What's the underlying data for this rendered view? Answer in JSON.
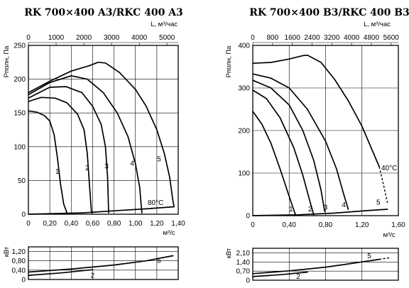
{
  "chart_data": [
    {
      "type": "line",
      "title": "RK 700×400 A3/RKC 400 A3",
      "xlabel": "м³/с",
      "ylabel": "Pполн, Па",
      "top_axis_label": "L, м³/час",
      "x_ticks": [
        "0",
        "0,20",
        "0,40",
        "0,60",
        "0,80",
        "1,00",
        "1,20",
        "1,40"
      ],
      "x_range": [
        0,
        1.4
      ],
      "top_ticks": [
        "0",
        "1000",
        "2000",
        "3000",
        "4000",
        "5000"
      ],
      "y_ticks": [
        "0",
        "50",
        "100",
        "150",
        "200",
        "250"
      ],
      "y_range": [
        0,
        250
      ],
      "grid": true,
      "temperature_label": "80°C",
      "series": [
        {
          "name": "1",
          "label_at": [
            0.27,
            60
          ],
          "points": [
            [
              0,
              153
            ],
            [
              0.08,
              151
            ],
            [
              0.15,
              146
            ],
            [
              0.2,
              138
            ],
            [
              0.24,
              118
            ],
            [
              0.27,
              85
            ],
            [
              0.3,
              45
            ],
            [
              0.33,
              15
            ],
            [
              0.36,
              2
            ]
          ]
        },
        {
          "name": "2",
          "label_at": [
            0.55,
            65
          ],
          "points": [
            [
              0,
              167
            ],
            [
              0.12,
              173
            ],
            [
              0.25,
              172
            ],
            [
              0.36,
              165
            ],
            [
              0.46,
              148
            ],
            [
              0.52,
              125
            ],
            [
              0.55,
              90
            ],
            [
              0.57,
              45
            ],
            [
              0.59,
              2
            ]
          ]
        },
        {
          "name": "3",
          "label_at": [
            0.73,
            68
          ],
          "points": [
            [
              0,
              172
            ],
            [
              0.2,
              188
            ],
            [
              0.35,
              189
            ],
            [
              0.5,
              180
            ],
            [
              0.6,
              160
            ],
            [
              0.68,
              133
            ],
            [
              0.72,
              100
            ],
            [
              0.74,
              55
            ],
            [
              0.75,
              2
            ]
          ]
        },
        {
          "name": "4",
          "label_at": [
            0.97,
            72
          ],
          "points": [
            [
              0,
              177
            ],
            [
              0.2,
              195
            ],
            [
              0.4,
              205
            ],
            [
              0.55,
              200
            ],
            [
              0.7,
              180
            ],
            [
              0.83,
              150
            ],
            [
              0.93,
              115
            ],
            [
              1.0,
              75
            ],
            [
              1.04,
              40
            ],
            [
              1.06,
              2
            ]
          ]
        },
        {
          "name": "5",
          "label_at": [
            1.22,
            78
          ],
          "points": [
            [
              0,
              180
            ],
            [
              0.2,
              197
            ],
            [
              0.4,
              212
            ],
            [
              0.57,
              220
            ],
            [
              0.65,
              225
            ],
            [
              0.72,
              224
            ],
            [
              0.85,
              210
            ],
            [
              1.0,
              185
            ],
            [
              1.1,
              160
            ],
            [
              1.2,
              125
            ],
            [
              1.27,
              90
            ],
            [
              1.32,
              55
            ],
            [
              1.35,
              20
            ],
            [
              1.36,
              12
            ]
          ]
        },
        {
          "name": "",
          "points": [
            [
              0,
              0
            ],
            [
              0.5,
              2
            ],
            [
              0.8,
              5
            ],
            [
              1.1,
              8
            ],
            [
              1.36,
              11
            ]
          ]
        }
      ],
      "power_chart": {
        "ylabel": "кВт",
        "y_ticks": [
          "0",
          "0,40",
          "0,80",
          "1,20"
        ],
        "y_range": [
          0,
          1.4
        ],
        "series": [
          {
            "name": "2",
            "label_at": [
              0.6,
              0.08
            ],
            "points": [
              [
                0,
                0.18
              ],
              [
                0.3,
                0.28
              ],
              [
                0.6,
                0.42
              ]
            ]
          },
          {
            "name": "5",
            "label_at": [
              1.22,
              0.72
            ],
            "points": [
              [
                0,
                0.32
              ],
              [
                0.4,
                0.45
              ],
              [
                0.8,
                0.62
              ],
              [
                1.1,
                0.8
              ],
              [
                1.35,
                1.02
              ]
            ]
          }
        ]
      }
    },
    {
      "type": "line",
      "title": "RK 700×400 B3/RKC 400 B3",
      "xlabel": "м³/с",
      "ylabel": "Pполн, Па",
      "top_axis_label": "L, м³/час",
      "x_ticks": [
        "0",
        "0,40",
        "0,80",
        "1,20",
        "1,60"
      ],
      "x_range": [
        0,
        1.6
      ],
      "top_ticks": [
        "0",
        "800",
        "1600",
        "2400",
        "3200",
        "4000",
        "4800",
        "5600"
      ],
      "y_ticks": [
        "0",
        "100",
        "200",
        "300",
        "400"
      ],
      "y_range": [
        0,
        400
      ],
      "grid": true,
      "temperature_label": "40°C",
      "series": [
        {
          "name": "1",
          "label_at": [
            0.42,
            10
          ],
          "points": [
            [
              0,
              245
            ],
            [
              0.1,
              215
            ],
            [
              0.2,
              170
            ],
            [
              0.3,
              110
            ],
            [
              0.4,
              45
            ],
            [
              0.44,
              20
            ],
            [
              0.47,
              2
            ]
          ]
        },
        {
          "name": "2",
          "label_at": [
            0.63,
            10
          ],
          "points": [
            [
              0,
              295
            ],
            [
              0.15,
              275
            ],
            [
              0.3,
              230
            ],
            [
              0.45,
              160
            ],
            [
              0.55,
              95
            ],
            [
              0.62,
              40
            ],
            [
              0.67,
              2
            ]
          ]
        },
        {
          "name": "3",
          "label_at": [
            0.8,
            14
          ],
          "points": [
            [
              0,
              318
            ],
            [
              0.2,
              300
            ],
            [
              0.4,
              260
            ],
            [
              0.55,
              200
            ],
            [
              0.67,
              130
            ],
            [
              0.75,
              60
            ],
            [
              0.79,
              10
            ]
          ]
        },
        {
          "name": "4",
          "label_at": [
            1.0,
            20
          ],
          "points": [
            [
              0,
              333
            ],
            [
              0.2,
              323
            ],
            [
              0.4,
              300
            ],
            [
              0.6,
              250
            ],
            [
              0.8,
              175
            ],
            [
              0.92,
              110
            ],
            [
              1.0,
              50
            ],
            [
              1.05,
              15
            ]
          ]
        },
        {
          "name": "5",
          "label_at": [
            1.38,
            26
          ],
          "points": [
            [
              0,
              358
            ],
            [
              0.2,
              360
            ],
            [
              0.4,
              368
            ],
            [
              0.55,
              376
            ],
            [
              0.6,
              377
            ],
            [
              0.75,
              360
            ],
            [
              0.9,
              320
            ],
            [
              1.05,
              270
            ],
            [
              1.2,
              210
            ],
            [
              1.3,
              160
            ],
            [
              1.39,
              115
            ]
          ]
        },
        {
          "name": "",
          "dashed": true,
          "points": [
            [
              1.39,
              115
            ],
            [
              1.44,
              70
            ],
            [
              1.48,
              30
            ]
          ]
        },
        {
          "name": "",
          "points": [
            [
              0,
              0
            ],
            [
              0.5,
              2
            ],
            [
              0.9,
              6
            ],
            [
              1.2,
              11
            ],
            [
              1.48,
              15
            ]
          ]
        }
      ],
      "power_chart": {
        "ylabel": "кВт",
        "y_ticks": [
          "0",
          "0,70",
          "1,40",
          "2,10"
        ],
        "y_range": [
          0,
          2.45
        ],
        "series": [
          {
            "name": "2",
            "label_at": [
              0.5,
              0.1
            ],
            "points": [
              [
                0,
                0.28
              ],
              [
                0.3,
                0.42
              ],
              [
                0.6,
                0.62
              ]
            ]
          },
          {
            "name": "5",
            "label_at": [
              1.28,
              1.68
            ],
            "points": [
              [
                0,
                0.5
              ],
              [
                0.4,
                0.72
              ],
              [
                0.8,
                1.0
              ],
              [
                1.1,
                1.3
              ],
              [
                1.39,
                1.6
              ]
            ]
          },
          {
            "name": "",
            "dashed": true,
            "points": [
              [
                1.39,
                1.6
              ],
              [
                1.5,
                1.72
              ]
            ]
          }
        ]
      }
    }
  ]
}
